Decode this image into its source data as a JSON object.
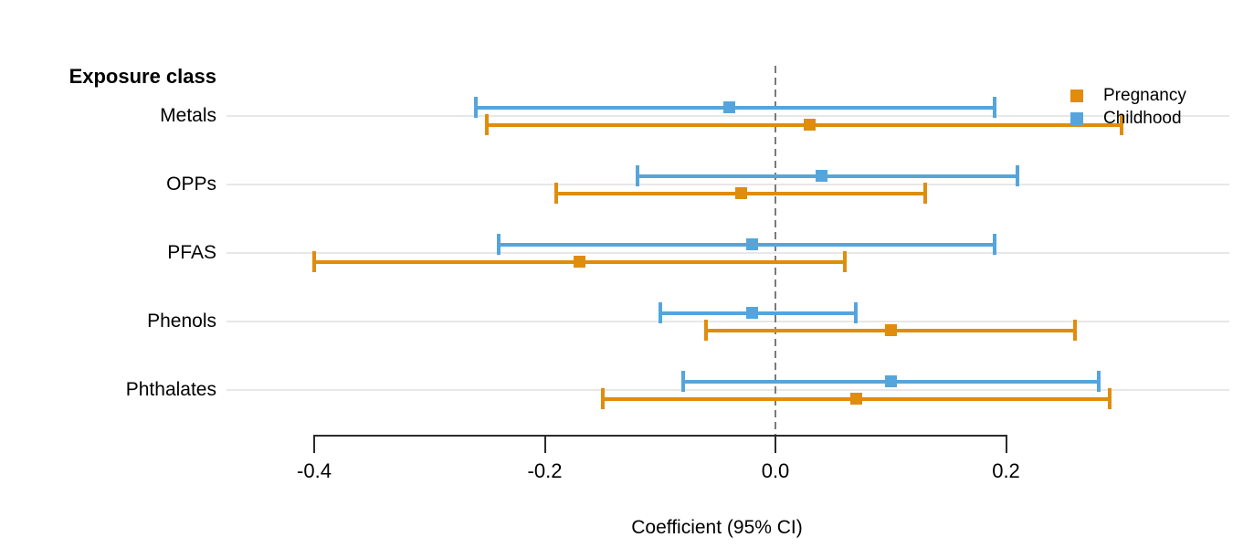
{
  "colors": {
    "pregnancy": "#e08c0d",
    "childhood": "#55a5dc",
    "gridline": "#e7e7e7",
    "axis": "#2b2b2b",
    "reference_line": "#7a7a7a"
  },
  "chart_data": {
    "type": "forest",
    "y_axis_title": "Exposure class",
    "xlabel": "Coefficient (95% CI)",
    "categories": [
      "Metals",
      "OPPs",
      "PFAS",
      "Phenols",
      "Phthalates"
    ],
    "series": [
      {
        "name": "Childhood",
        "color": "#55a5dc",
        "estimates": [
          -0.04,
          0.04,
          -0.02,
          -0.02,
          0.1
        ],
        "ci_low": [
          -0.26,
          -0.12,
          -0.24,
          -0.1,
          -0.08
        ],
        "ci_high": [
          0.19,
          0.21,
          0.19,
          0.07,
          0.28
        ]
      },
      {
        "name": "Pregnancy",
        "color": "#e08c0d",
        "estimates": [
          0.03,
          -0.03,
          -0.17,
          0.1,
          0.07
        ],
        "ci_low": [
          -0.25,
          -0.19,
          -0.4,
          -0.06,
          -0.15
        ],
        "ci_high": [
          0.3,
          0.13,
          0.06,
          0.26,
          0.29
        ]
      }
    ],
    "x_ticks": [
      {
        "value": -0.4,
        "label": "-0.4"
      },
      {
        "value": -0.2,
        "label": "-0.2"
      },
      {
        "value": 0.0,
        "label": "0.0"
      },
      {
        "value": 0.2,
        "label": "0.2"
      }
    ],
    "x_range": [
      -0.4,
      0.2
    ],
    "reference_line": 0.0,
    "grid": "horizontal-only",
    "legend": {
      "position": "top-right",
      "items": [
        "Pregnancy",
        "Childhood"
      ]
    }
  }
}
